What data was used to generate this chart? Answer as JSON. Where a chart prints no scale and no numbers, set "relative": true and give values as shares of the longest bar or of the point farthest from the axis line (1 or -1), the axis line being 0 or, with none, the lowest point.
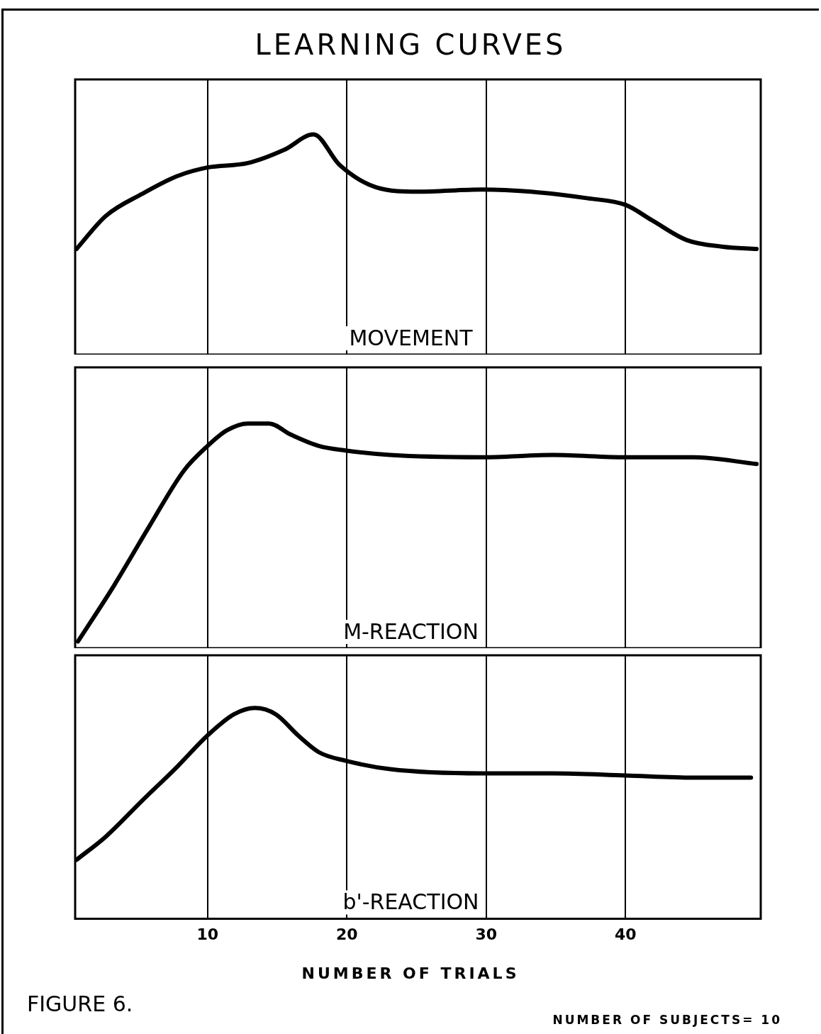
{
  "chart_data": [
    {
      "type": "line",
      "title": "LEARNING CURVES",
      "relative": true,
      "xlim": [
        0.5,
        49.7
      ],
      "xticks": [
        10,
        20,
        30,
        40
      ],
      "grid": "x",
      "tick_labels": false,
      "legend": false,
      "marker": "none",
      "line_style": "solid",
      "x": [
        0.6,
        2.7,
        5.3,
        7.8,
        10,
        12.9,
        15.5,
        17.6,
        19.5,
        22.1,
        25.1,
        29.7,
        33.2,
        37.3,
        40,
        41.9,
        44.4,
        47,
        49.4
      ],
      "series": [
        {
          "name": "MOVEMENT",
          "color": "#000000",
          "values": [
            0.48,
            0.63,
            0.73,
            0.81,
            0.85,
            0.87,
            0.93,
            1,
            0.86,
            0.76,
            0.74,
            0.75,
            0.74,
            0.71,
            0.68,
            0.61,
            0.52,
            0.49,
            0.48
          ]
        }
      ]
    },
    {
      "type": "line",
      "relative": true,
      "xlim": [
        0.5,
        49.7
      ],
      "xticks": [
        10,
        20,
        30,
        40
      ],
      "grid": "x",
      "tick_labels": false,
      "legend": false,
      "marker": "none",
      "line_style": "solid",
      "x": [
        0.7,
        3.3,
        5.8,
        8.3,
        10,
        11.4,
        12.9,
        14.4,
        16,
        18,
        19.9,
        23.1,
        29.7,
        34.8,
        40,
        44.9,
        49.4
      ],
      "series": [
        {
          "name": "M-REACTION",
          "color": "#000000",
          "values": [
            0.03,
            0.28,
            0.54,
            0.79,
            0.9,
            0.97,
            1,
            1,
            0.95,
            0.9,
            0.88,
            0.86,
            0.85,
            0.86,
            0.85,
            0.85,
            0.82
          ]
        }
      ]
    },
    {
      "type": "line",
      "relative": true,
      "xlim": [
        0.5,
        49.7
      ],
      "xticks": [
        10,
        20,
        30,
        40
      ],
      "grid": "x",
      "tick_labels": "x",
      "legend": false,
      "marker": "none",
      "line_style": "solid",
      "xlabel": "NUMBER OF TRIALS",
      "annotations": [
        "FIGURE 6.",
        "NUMBER OF SUBJECTS= 10"
      ],
      "x": [
        0.6,
        2.7,
        5.3,
        7.8,
        10,
        11.9,
        13.4,
        14.9,
        16.5,
        18,
        19.9,
        23.1,
        29.7,
        34.8,
        40,
        44.9,
        49
      ],
      "series": [
        {
          "name": "b'-REACTION",
          "color": "#000000",
          "values": [
            0.28,
            0.39,
            0.56,
            0.72,
            0.87,
            0.97,
            1,
            0.97,
            0.87,
            0.79,
            0.75,
            0.71,
            0.69,
            0.69,
            0.68,
            0.67,
            0.67
          ]
        }
      ]
    }
  ]
}
